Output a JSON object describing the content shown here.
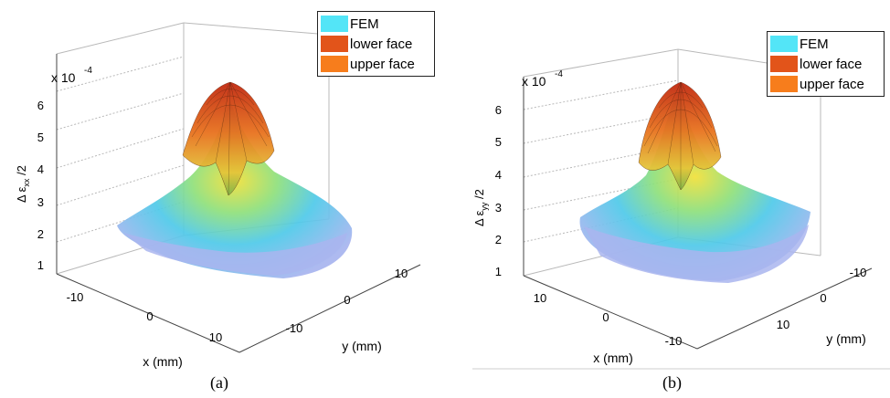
{
  "colors": {
    "fem": "#53e5f7",
    "lower_face": "#e2541a",
    "upper_face": "#f77d1c",
    "axes": "#444444",
    "grid": "#b9b9b9"
  },
  "panels": [
    {
      "caption": "(a)",
      "exponent_base": "x 10",
      "exponent_power": "-4",
      "zlabel_main": "Δ ε",
      "zlabel_sub": "xx",
      "zlabel_tail": " /2",
      "xlabel": "x (mm)",
      "ylabel": "y (mm)",
      "legend": [
        {
          "label": "FEM",
          "color_key": "fem"
        },
        {
          "label": "lower face",
          "color_key": "lower_face"
        },
        {
          "label": "upper face",
          "color_key": "upper_face"
        }
      ],
      "z_ticks": [
        "1",
        "2",
        "3",
        "4",
        "5",
        "6"
      ],
      "x_ticks": [
        "-10",
        "0",
        "10"
      ],
      "y_ticks": [
        "-10",
        "0",
        "10"
      ]
    },
    {
      "caption": "(b)",
      "exponent_base": "x 10",
      "exponent_power": "-4",
      "zlabel_main": "Δ ε",
      "zlabel_sub": "yy",
      "zlabel_tail": " /2",
      "xlabel": "x (mm)",
      "ylabel": "y (mm)",
      "legend": [
        {
          "label": "FEM",
          "color_key": "fem"
        },
        {
          "label": "lower face",
          "color_key": "lower_face"
        },
        {
          "label": "upper face",
          "color_key": "upper_face"
        }
      ],
      "z_ticks": [
        "1",
        "2",
        "3",
        "4",
        "5",
        "6"
      ],
      "x_ticks": [
        "10",
        "0",
        "-10"
      ],
      "y_ticks": [
        "-10",
        "0",
        "10"
      ]
    }
  ],
  "chart_data": [
    {
      "type": "surface",
      "series": [
        {
          "name": "FEM"
        },
        {
          "name": "lower face"
        },
        {
          "name": "upper face"
        }
      ],
      "xlabel": "x (mm)",
      "ylabel": "y (mm)",
      "zlabel": "Δ ε_xx /2",
      "z_scale": "x 10^-4",
      "xlim": [
        -15,
        15
      ],
      "ylim": [
        -15,
        15
      ],
      "zlim": [
        1,
        6.5
      ],
      "z_peak": 6.4,
      "z_base": 1.8,
      "grid": true,
      "legend_position": "top-right"
    },
    {
      "type": "surface",
      "series": [
        {
          "name": "FEM"
        },
        {
          "name": "lower face"
        },
        {
          "name": "upper face"
        }
      ],
      "xlabel": "x (mm)",
      "ylabel": "y (mm)",
      "zlabel": "Δ ε_yy /2",
      "z_scale": "x 10^-4",
      "xlim": [
        -15,
        15
      ],
      "ylim": [
        -15,
        15
      ],
      "zlim": [
        1,
        6.8
      ],
      "z_peak": 6.7,
      "z_base": 2.2,
      "grid": true,
      "legend_position": "top-right"
    }
  ]
}
